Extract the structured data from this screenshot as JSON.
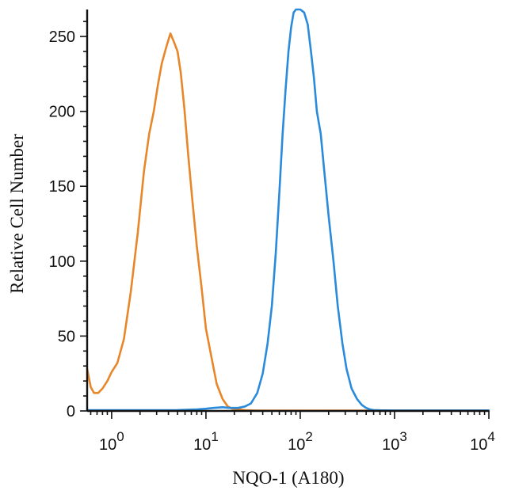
{
  "chart_data": {
    "type": "line",
    "xlabel": "NQO-1 (A180)",
    "ylabel": "Relative Cell Number",
    "x_scale": "log",
    "xlim": [
      0.55,
      10000
    ],
    "ylim": [
      0,
      268
    ],
    "x_ticks": [
      {
        "value": 1,
        "base": "10",
        "exp": "0"
      },
      {
        "value": 10,
        "base": "10",
        "exp": "1"
      },
      {
        "value": 100,
        "base": "10",
        "exp": "2"
      },
      {
        "value": 1000,
        "base": "10",
        "exp": "3"
      },
      {
        "value": 10000,
        "base": "10",
        "exp": "4"
      }
    ],
    "y_ticks": [
      0,
      50,
      100,
      150,
      200,
      250
    ],
    "grid": false,
    "series": [
      {
        "color": "#E8862A",
        "x": [
          0.55,
          0.6,
          0.65,
          0.72,
          0.8,
          0.9,
          1.0,
          1.15,
          1.35,
          1.6,
          1.9,
          2.2,
          2.5,
          2.8,
          3.1,
          3.4,
          3.8,
          4.2,
          4.6,
          5.0,
          5.4,
          5.9,
          6.5,
          7.2,
          8.0,
          9.0,
          10,
          11.5,
          13,
          15,
          17,
          19,
          22,
          26,
          32,
          40,
          50,
          70,
          100,
          200,
          500,
          1000,
          3000,
          10000
        ],
        "y": [
          28,
          16,
          12,
          12,
          15,
          20,
          26,
          32,
          48,
          80,
          120,
          160,
          185,
          200,
          218,
          232,
          243,
          252,
          246,
          240,
          226,
          202,
          170,
          140,
          110,
          82,
          55,
          35,
          18,
          8,
          3,
          1.5,
          1,
          0.5,
          0.3,
          0.2,
          0.2,
          0.2,
          0.2,
          0.2,
          0.2,
          0.2,
          0.2,
          0.2
        ]
      },
      {
        "color": "#2A8BDC",
        "x": [
          0.55,
          1,
          2,
          5,
          8,
          10,
          12,
          15,
          18,
          22,
          26,
          30,
          35,
          40,
          45,
          50,
          55,
          60,
          65,
          70,
          75,
          80,
          85,
          90,
          95,
          100,
          110,
          120,
          130,
          140,
          150,
          165,
          180,
          200,
          225,
          250,
          280,
          310,
          350,
          400,
          450,
          500,
          550,
          600,
          700,
          1000,
          3000,
          10000
        ],
        "y": [
          0.5,
          0.5,
          0.5,
          0.6,
          1,
          1.5,
          2,
          2.5,
          2,
          2,
          3,
          5,
          12,
          25,
          45,
          70,
          105,
          145,
          185,
          215,
          240,
          256,
          266,
          268,
          268,
          268,
          266,
          258,
          240,
          222,
          200,
          185,
          160,
          130,
          100,
          70,
          45,
          28,
          15,
          8,
          4,
          2,
          1,
          0.6,
          0.4,
          0.3,
          0.3,
          0.3
        ]
      }
    ]
  }
}
